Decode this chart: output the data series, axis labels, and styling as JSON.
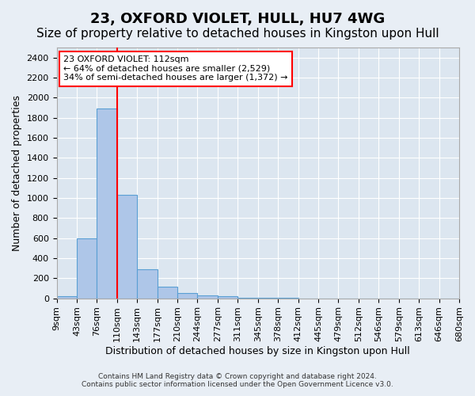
{
  "title": "23, OXFORD VIOLET, HULL, HU7 4WG",
  "subtitle": "Size of property relative to detached houses in Kingston upon Hull",
  "xlabel": "Distribution of detached houses by size in Kingston upon Hull",
  "ylabel": "Number of detached properties",
  "footer_line1": "Contains HM Land Registry data © Crown copyright and database right 2024.",
  "footer_line2": "Contains public sector information licensed under the Open Government Licence v3.0.",
  "bin_labels": [
    "9sqm",
    "43sqm",
    "76sqm",
    "110sqm",
    "143sqm",
    "177sqm",
    "210sqm",
    "244sqm",
    "277sqm",
    "311sqm",
    "345sqm",
    "378sqm",
    "412sqm",
    "445sqm",
    "479sqm",
    "512sqm",
    "546sqm",
    "579sqm",
    "613sqm",
    "646sqm",
    "680sqm"
  ],
  "bar_values": [
    20,
    600,
    1890,
    1030,
    290,
    115,
    50,
    30,
    20,
    5,
    2,
    1,
    0,
    0,
    0,
    0,
    0,
    0,
    0,
    0
  ],
  "bar_color": "#aec6e8",
  "bar_edge_color": "#5a9fd4",
  "property_line_x": 3.0,
  "property_line_label": "23 OXFORD VIOLET: 112sqm",
  "annotation_smaller": "← 64% of detached houses are smaller (2,529)",
  "annotation_larger": "34% of semi-detached houses are larger (1,372) →",
  "annotation_box_color": "white",
  "annotation_box_edge_color": "red",
  "line_color": "red",
  "ylim": [
    0,
    2500
  ],
  "yticks": [
    0,
    200,
    400,
    600,
    800,
    1000,
    1200,
    1400,
    1600,
    1800,
    2000,
    2200,
    2400
  ],
  "background_color": "#e8eef5",
  "plot_background_color": "#dce6f0",
  "title_fontsize": 13,
  "subtitle_fontsize": 11,
  "label_fontsize": 9,
  "tick_fontsize": 8
}
